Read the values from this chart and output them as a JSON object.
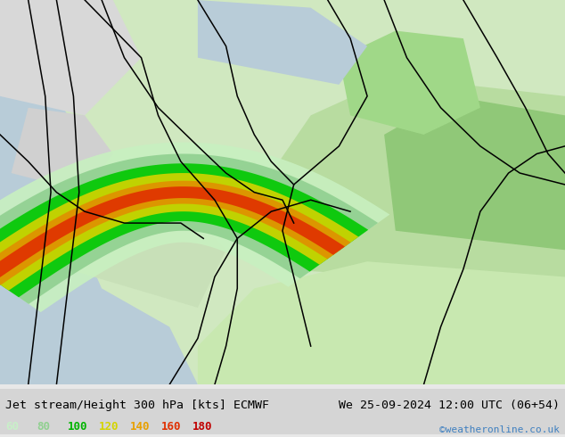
{
  "title_left": "Jet stream/Height 300 hPa [kts] ECMWF",
  "title_right": "We 25-09-2024 12:00 UTC (06+54)",
  "copyright": "©weatheronline.co.uk",
  "legend_values": [
    "60",
    "80",
    "100",
    "120",
    "140",
    "160",
    "180"
  ],
  "legend_colors": [
    "#c8f0c8",
    "#90d090",
    "#00b400",
    "#d4d400",
    "#e8a000",
    "#e03000",
    "#c00000"
  ],
  "title_size": 9.5,
  "copyright_size": 8,
  "copyright_color": "#4080c0"
}
